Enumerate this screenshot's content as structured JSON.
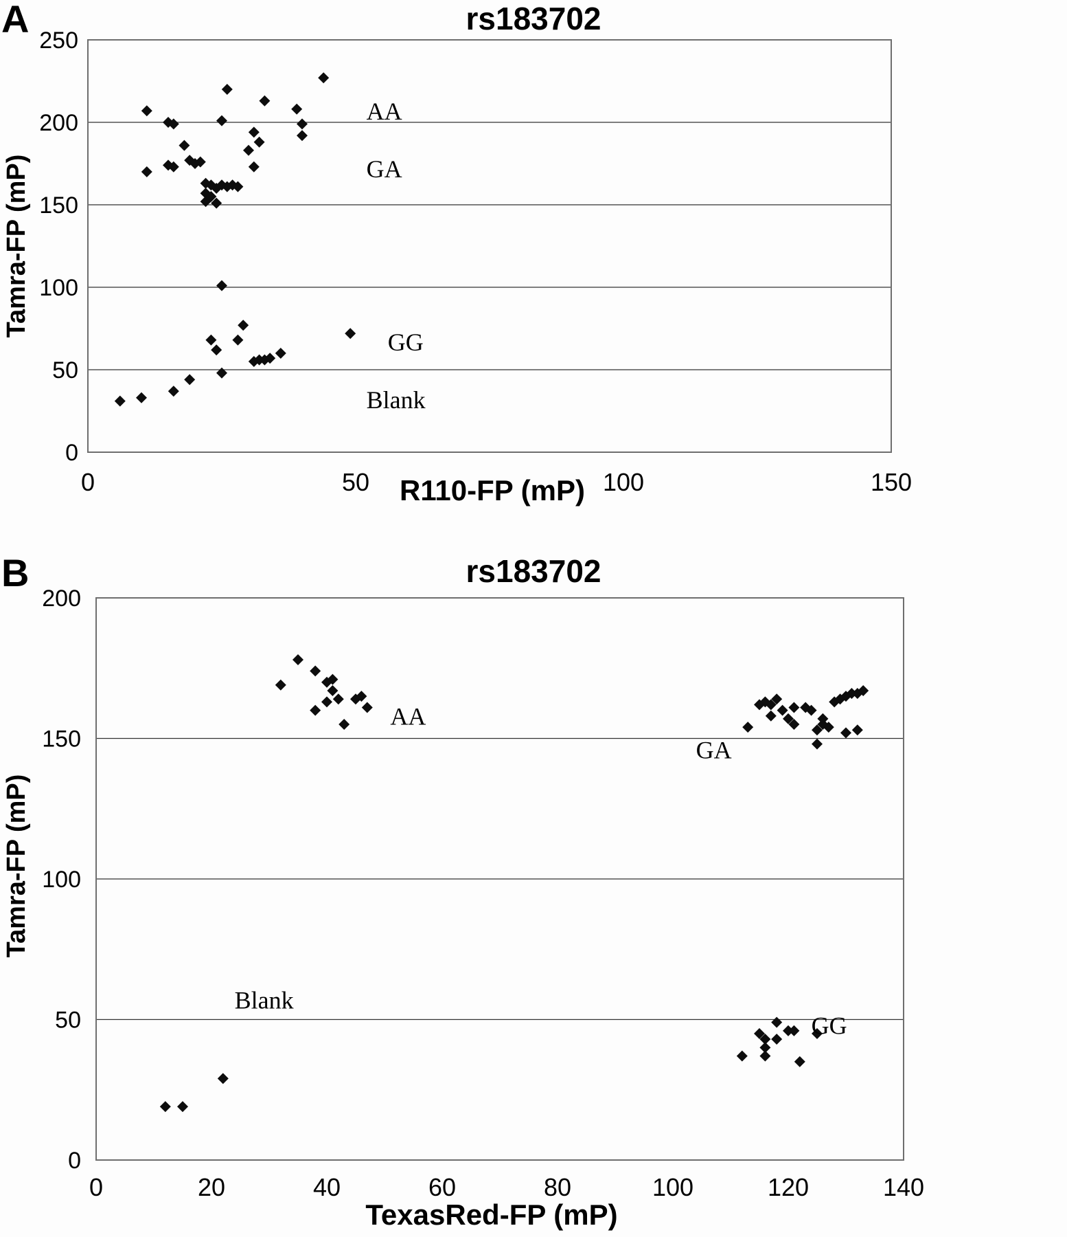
{
  "panels": [
    {
      "letter": "A"
    },
    {
      "letter": "B"
    }
  ],
  "chart_data": [
    {
      "type": "scatter",
      "title": "rs183702",
      "xlabel": "R110-FP (mP)",
      "ylabel": "Tamra-FP (mP)",
      "xlim": [
        0,
        150
      ],
      "ylim": [
        0,
        250
      ],
      "xticks": [
        0,
        50,
        100,
        150
      ],
      "yticks": [
        0,
        50,
        100,
        150,
        200,
        250
      ],
      "grid": "horizontal-only",
      "legend": "none",
      "marker": "diamond",
      "marker_color": "#0d0d0d",
      "annotations": [
        {
          "label": "AA",
          "x": 52,
          "y": 207
        },
        {
          "label": "GA",
          "x": 52,
          "y": 172
        },
        {
          "label": "GG",
          "x": 56,
          "y": 67
        },
        {
          "label": "Blank",
          "x": 52,
          "y": 32
        }
      ],
      "series": [
        {
          "name": "AA",
          "points": [
            [
              11,
              207
            ],
            [
              15,
              200
            ],
            [
              16,
              199
            ],
            [
              25,
              201
            ],
            [
              26,
              220
            ],
            [
              31,
              194
            ],
            [
              32,
              188
            ],
            [
              33,
              213
            ],
            [
              39,
              208
            ],
            [
              40,
              199
            ],
            [
              40,
              192
            ],
            [
              44,
              227
            ]
          ]
        },
        {
          "name": "GA",
          "points": [
            [
              11,
              170
            ],
            [
              15,
              174
            ],
            [
              16,
              173
            ],
            [
              18,
              186
            ],
            [
              19,
              177
            ],
            [
              20,
              175
            ],
            [
              21,
              176
            ],
            [
              30,
              183
            ],
            [
              31,
              173
            ],
            [
              22,
              163
            ],
            [
              23,
              162
            ],
            [
              24,
              160
            ],
            [
              25,
              162
            ],
            [
              26,
              161
            ],
            [
              27,
              162
            ],
            [
              28,
              161
            ],
            [
              22,
              157
            ],
            [
              23,
              155
            ],
            [
              22,
              152
            ],
            [
              24,
              151
            ],
            [
              25,
              101
            ]
          ]
        },
        {
          "name": "GG",
          "points": [
            [
              23,
              68
            ],
            [
              24,
              62
            ],
            [
              28,
              68
            ],
            [
              29,
              77
            ],
            [
              31,
              55
            ],
            [
              32,
              56
            ],
            [
              33,
              56
            ],
            [
              34,
              57
            ],
            [
              36,
              60
            ],
            [
              49,
              72
            ]
          ]
        },
        {
          "name": "Blank",
          "points": [
            [
              6,
              31
            ],
            [
              10,
              33
            ],
            [
              16,
              37
            ],
            [
              19,
              44
            ],
            [
              25,
              48
            ]
          ]
        }
      ]
    },
    {
      "type": "scatter",
      "title": "rs183702",
      "xlabel": "TexasRed-FP (mP)",
      "ylabel": "Tamra-FP (mP)",
      "xlim": [
        0,
        140
      ],
      "ylim": [
        0,
        200
      ],
      "xticks": [
        0,
        20,
        40,
        60,
        80,
        100,
        120,
        140
      ],
      "yticks": [
        0,
        50,
        100,
        150,
        200
      ],
      "grid": "horizontal-only",
      "legend": "none",
      "marker": "diamond",
      "marker_color": "#0d0d0d",
      "annotations": [
        {
          "label": "AA",
          "x": 51,
          "y": 158
        },
        {
          "label": "GA",
          "x": 104,
          "y": 146
        },
        {
          "label": "Blank",
          "x": 24,
          "y": 57
        },
        {
          "label": "GG",
          "x": 124,
          "y": 48
        }
      ],
      "series": [
        {
          "name": "AA",
          "points": [
            [
              32,
              169
            ],
            [
              35,
              178
            ],
            [
              38,
              174
            ],
            [
              38,
              160
            ],
            [
              40,
              170
            ],
            [
              40,
              163
            ],
            [
              41,
              171
            ],
            [
              41,
              167
            ],
            [
              42,
              164
            ],
            [
              43,
              155
            ],
            [
              45,
              164
            ],
            [
              46,
              165
            ],
            [
              47,
              161
            ]
          ]
        },
        {
          "name": "GA",
          "points": [
            [
              113,
              154
            ],
            [
              115,
              162
            ],
            [
              116,
              163
            ],
            [
              117,
              162
            ],
            [
              117,
              158
            ],
            [
              118,
              164
            ],
            [
              119,
              160
            ],
            [
              120,
              157
            ],
            [
              121,
              155
            ],
            [
              121,
              161
            ],
            [
              123,
              161
            ],
            [
              124,
              160
            ],
            [
              125,
              148
            ],
            [
              125,
              153
            ],
            [
              126,
              155
            ],
            [
              126,
              157
            ],
            [
              127,
              154
            ],
            [
              128,
              163
            ],
            [
              129,
              164
            ],
            [
              130,
              165
            ],
            [
              130,
              152
            ],
            [
              131,
              166
            ],
            [
              132,
              166
            ],
            [
              132,
              153
            ],
            [
              133,
              167
            ]
          ]
        },
        {
          "name": "GG",
          "points": [
            [
              112,
              37
            ],
            [
              115,
              45
            ],
            [
              116,
              43
            ],
            [
              116,
              40
            ],
            [
              116,
              37
            ],
            [
              118,
              49
            ],
            [
              118,
              43
            ],
            [
              120,
              46
            ],
            [
              121,
              46
            ],
            [
              122,
              35
            ],
            [
              125,
              45
            ]
          ]
        },
        {
          "name": "Blank",
          "points": [
            [
              12,
              19
            ],
            [
              15,
              19
            ],
            [
              22,
              29
            ]
          ]
        }
      ]
    }
  ]
}
